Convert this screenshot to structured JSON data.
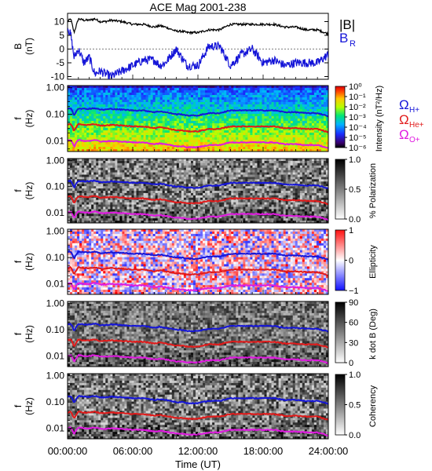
{
  "title": "ACE Mag 2001-238",
  "xlabel": "Time (UT)",
  "x_ticks": [
    "00:00:00",
    "06:00:00",
    "12:00:00",
    "18:00:00",
    "24:00:00"
  ],
  "colors": {
    "hplus": "#1515d8",
    "heplus": "#e11a1a",
    "oplus": "#e01ae0",
    "total": "#000000"
  },
  "chart_data": [
    {
      "type": "line",
      "panel": "B",
      "ylabel": "B",
      "yunit": "(nT)",
      "ylim": [
        -11,
        13
      ],
      "y_ticks": [
        -10,
        -5,
        0,
        5,
        10
      ],
      "x_hours_range": [
        0,
        24
      ],
      "series": [
        {
          "name": "|B|",
          "x_hours": [
            0,
            0.3,
            0.6,
            1,
            1.5,
            2,
            2.5,
            3,
            3.5,
            4,
            5,
            6,
            7,
            8,
            8.5,
            9,
            10,
            10.5,
            11,
            12,
            13,
            14,
            15,
            16,
            17,
            18,
            19,
            20,
            21,
            22,
            23,
            24
          ],
          "values": [
            10,
            11,
            6,
            11,
            10.5,
            10.5,
            11,
            10,
            10,
            10.5,
            10,
            9,
            9,
            8,
            8.5,
            8,
            6.5,
            6.5,
            6,
            6,
            7,
            7,
            9,
            9,
            9,
            9,
            9,
            8,
            8,
            7,
            7,
            5.5
          ]
        },
        {
          "name": "B_R",
          "x_hours": [
            0,
            0.3,
            0.6,
            1,
            1.5,
            2,
            2.5,
            3,
            3.5,
            4,
            5,
            6,
            7,
            8,
            8.5,
            9,
            10,
            10.5,
            11,
            12,
            13,
            14,
            15,
            16,
            17,
            18,
            19,
            20,
            21,
            22,
            23,
            24
          ],
          "values": [
            8,
            5,
            -3,
            0,
            -5,
            -3,
            -9,
            -8,
            -9,
            -10,
            -8,
            -6,
            -4,
            -4,
            -6,
            -5,
            0,
            -3,
            -6,
            -6,
            1,
            1,
            -6,
            -2,
            0,
            -5,
            -4,
            -6,
            -5,
            -5,
            -5,
            -2
          ]
        }
      ]
    },
    {
      "type": "heatmap",
      "panel": "Intensity",
      "ylabel": "f",
      "yunit": "(Hz)",
      "y_tick_labels": [
        "1.00",
        "0.10",
        "0.01"
      ],
      "colorbar_label": "Intensity (nT²/Hz)",
      "colorbar_ticks": [
        "10⁰",
        "10⁻¹",
        "10⁻²",
        "10⁻³",
        "10⁻⁴",
        "10⁻⁵",
        "10⁻⁶"
      ],
      "colormap": "rainbow",
      "legend": [
        "Ω_H+",
        "Ω_He+",
        "Ω_O+"
      ]
    },
    {
      "type": "heatmap",
      "panel": "Polarization",
      "ylabel": "f",
      "yunit": "(Hz)",
      "y_tick_labels": [
        "1.00",
        "0.10",
        "0.01"
      ],
      "colorbar_label": "% Polarization",
      "colorbar_ticks": [
        "1.0",
        "0.5",
        "0.0"
      ],
      "colormap": "gray"
    },
    {
      "type": "heatmap",
      "panel": "Ellipticity",
      "ylabel": "f",
      "yunit": "(Hz)",
      "y_tick_labels": [
        "1.00",
        "0.10",
        "0.01"
      ],
      "colorbar_label": "Ellipticity",
      "colorbar_ticks": [
        "1",
        "0",
        "−1"
      ],
      "colormap": "bwr"
    },
    {
      "type": "heatmap",
      "panel": "kdotB",
      "ylabel": "f",
      "yunit": "(Hz)",
      "y_tick_labels": [
        "1.00",
        "0.10",
        "0.01"
      ],
      "colorbar_label": "k dot B (Deg)",
      "colorbar_ticks": [
        "90",
        "60",
        "30",
        "0"
      ],
      "colormap": "gray"
    },
    {
      "type": "heatmap",
      "panel": "Coherency",
      "ylabel": "f",
      "yunit": "(Hz)",
      "y_tick_labels": [
        "1.00",
        "0.10",
        "0.01"
      ],
      "colorbar_label": "Coherency",
      "colorbar_ticks": [
        "1.0",
        "0.5",
        "0.0"
      ],
      "colormap": "gray"
    }
  ],
  "gyrofrequency_lines_hz": {
    "x_hours": [
      0,
      0.3,
      0.6,
      1,
      1.5,
      2,
      2.5,
      3,
      3.5,
      4,
      5,
      6,
      7,
      8,
      8.5,
      9,
      10,
      10.5,
      11,
      12,
      13,
      14,
      15,
      16,
      17,
      18,
      19,
      20,
      21,
      22,
      23,
      24
    ],
    "H+": [
      0.16,
      0.17,
      0.09,
      0.17,
      0.16,
      0.16,
      0.17,
      0.15,
      0.15,
      0.16,
      0.15,
      0.14,
      0.14,
      0.12,
      0.13,
      0.12,
      0.1,
      0.1,
      0.09,
      0.09,
      0.11,
      0.11,
      0.14,
      0.14,
      0.14,
      0.14,
      0.14,
      0.12,
      0.12,
      0.11,
      0.11,
      0.085
    ],
    "He+": [
      0.04,
      0.043,
      0.023,
      0.043,
      0.04,
      0.04,
      0.043,
      0.038,
      0.038,
      0.04,
      0.038,
      0.035,
      0.035,
      0.03,
      0.033,
      0.03,
      0.025,
      0.025,
      0.023,
      0.023,
      0.028,
      0.028,
      0.035,
      0.035,
      0.035,
      0.035,
      0.035,
      0.03,
      0.03,
      0.028,
      0.028,
      0.021
    ],
    "O+": [
      0.01,
      0.011,
      0.006,
      0.011,
      0.01,
      0.01,
      0.011,
      0.0095,
      0.0095,
      0.01,
      0.0095,
      0.0088,
      0.0088,
      0.0075,
      0.008,
      0.0075,
      0.0063,
      0.0063,
      0.0058,
      0.0058,
      0.007,
      0.007,
      0.0088,
      0.0088,
      0.0088,
      0.0088,
      0.0088,
      0.0075,
      0.0075,
      0.007,
      0.007,
      0.0053
    ]
  }
}
